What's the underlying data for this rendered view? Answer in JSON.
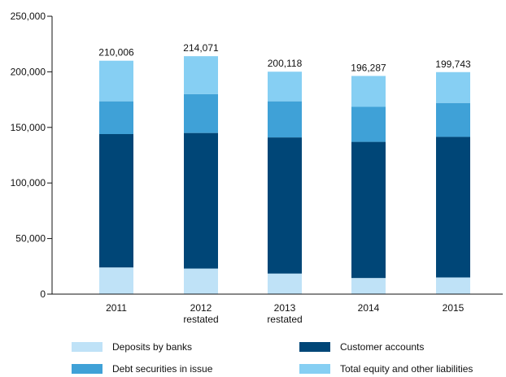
{
  "chart_data": {
    "type": "bar",
    "stacked": true,
    "categories": [
      "2011",
      "2012 restated",
      "2013 restated",
      "2014",
      "2015"
    ],
    "category_labels": [
      [
        "2011"
      ],
      [
        "2012",
        "restated"
      ],
      [
        "2013",
        "restated"
      ],
      [
        "2014"
      ],
      [
        "2015"
      ]
    ],
    "series": [
      {
        "name": "Deposits by banks",
        "color": "#bfe2f7",
        "values": [
          24000,
          23000,
          18500,
          14500,
          15000
        ]
      },
      {
        "name": "Customer accounts",
        "color": "#004677",
        "values": [
          120000,
          122000,
          122500,
          122500,
          126500
        ]
      },
      {
        "name": "Debt securities in issue",
        "color": "#3fa1d7",
        "values": [
          29500,
          35000,
          32500,
          31500,
          30500
        ]
      },
      {
        "name": "Total equity and other liabilities",
        "color": "#86cff3",
        "values": [
          36506,
          34071,
          26618,
          27787,
          27743
        ]
      }
    ],
    "totals": [
      "210,006",
      "214,071",
      "200,118",
      "196,287",
      "199,743"
    ],
    "ylim": [
      0,
      250000
    ],
    "yticks": [
      0,
      50000,
      100000,
      150000,
      200000,
      250000
    ],
    "ytick_labels": [
      "0",
      "50,000",
      "100,000",
      "150,000",
      "200,000",
      "250,000"
    ],
    "legend_position": "bottom",
    "grid": false
  }
}
